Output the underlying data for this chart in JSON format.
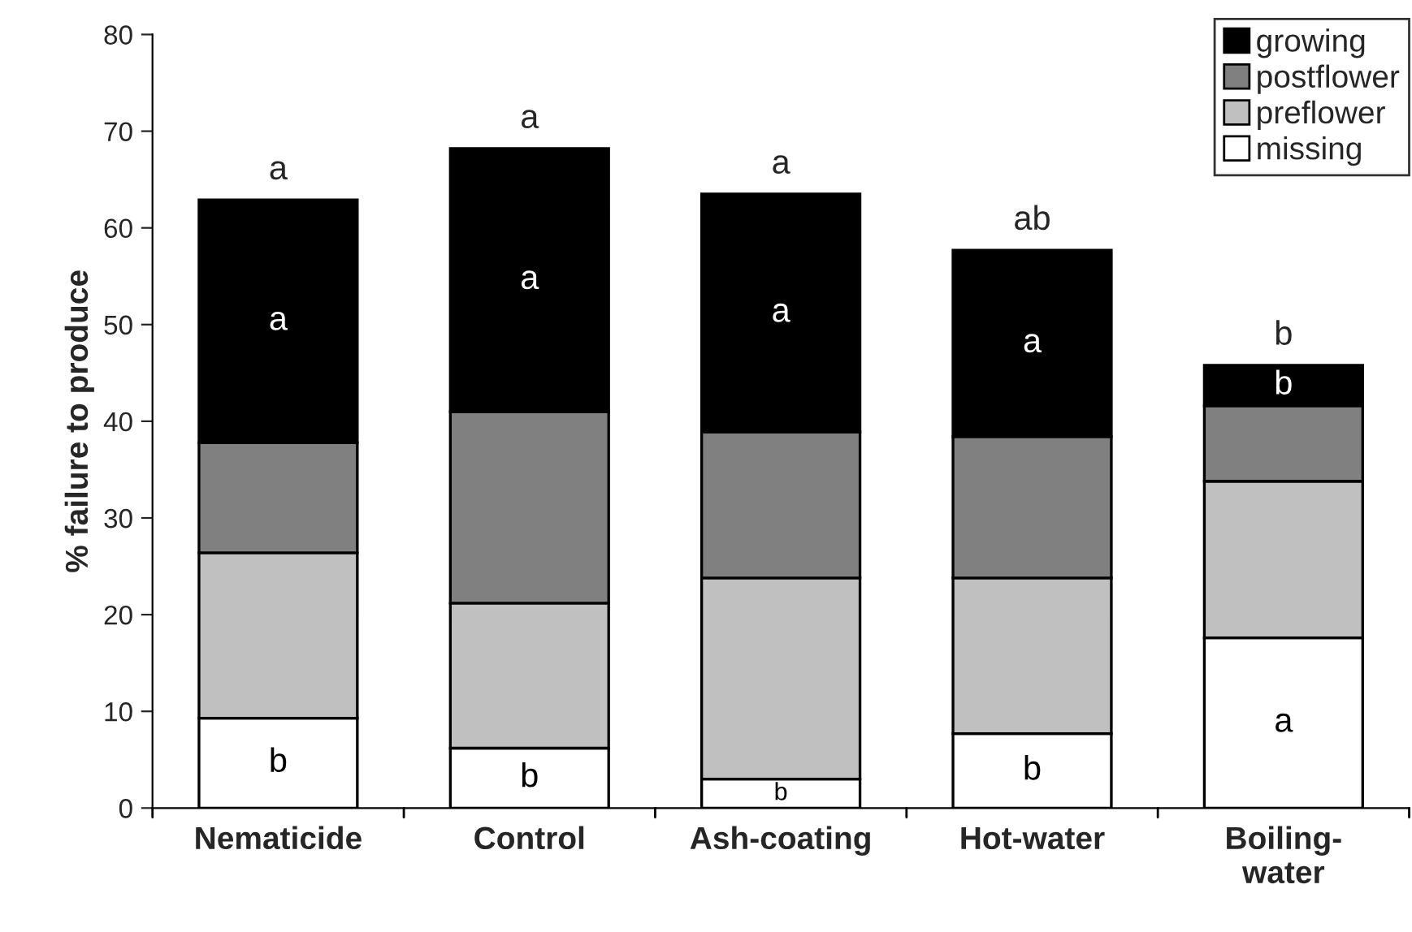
{
  "chart_data": {
    "type": "bar",
    "stacked": true,
    "ylabel": "% failure to produce",
    "categories": [
      "Nematicide",
      "Control",
      "Ash-coating",
      "Hot-water",
      "Boiling-\nwater"
    ],
    "series": [
      {
        "name": "missing",
        "color": "#ffffff",
        "values": [
          9.3,
          6.2,
          3.0,
          7.7,
          17.6
        ],
        "value_labels": [
          "b",
          "b",
          "b",
          "b",
          "a"
        ]
      },
      {
        "name": "preflower",
        "color": "#c0c0c0",
        "values": [
          17.1,
          15.0,
          20.8,
          16.1,
          16.2
        ]
      },
      {
        "name": "postflower",
        "color": "#808080",
        "values": [
          11.4,
          19.8,
          15.1,
          14.6,
          7.8
        ]
      },
      {
        "name": "growing",
        "color": "#000000",
        "values": [
          25.1,
          27.2,
          24.6,
          19.3,
          4.2
        ],
        "value_labels": [
          "a",
          "a",
          "a",
          "a",
          "b"
        ]
      }
    ],
    "totals": [
      "a",
      "a",
      "a",
      "ab",
      "b"
    ],
    "ylim": [
      0,
      80
    ],
    "yticks": [
      0,
      10,
      20,
      30,
      40,
      50,
      60,
      70,
      80
    ],
    "grid": false,
    "legend": "top right"
  }
}
